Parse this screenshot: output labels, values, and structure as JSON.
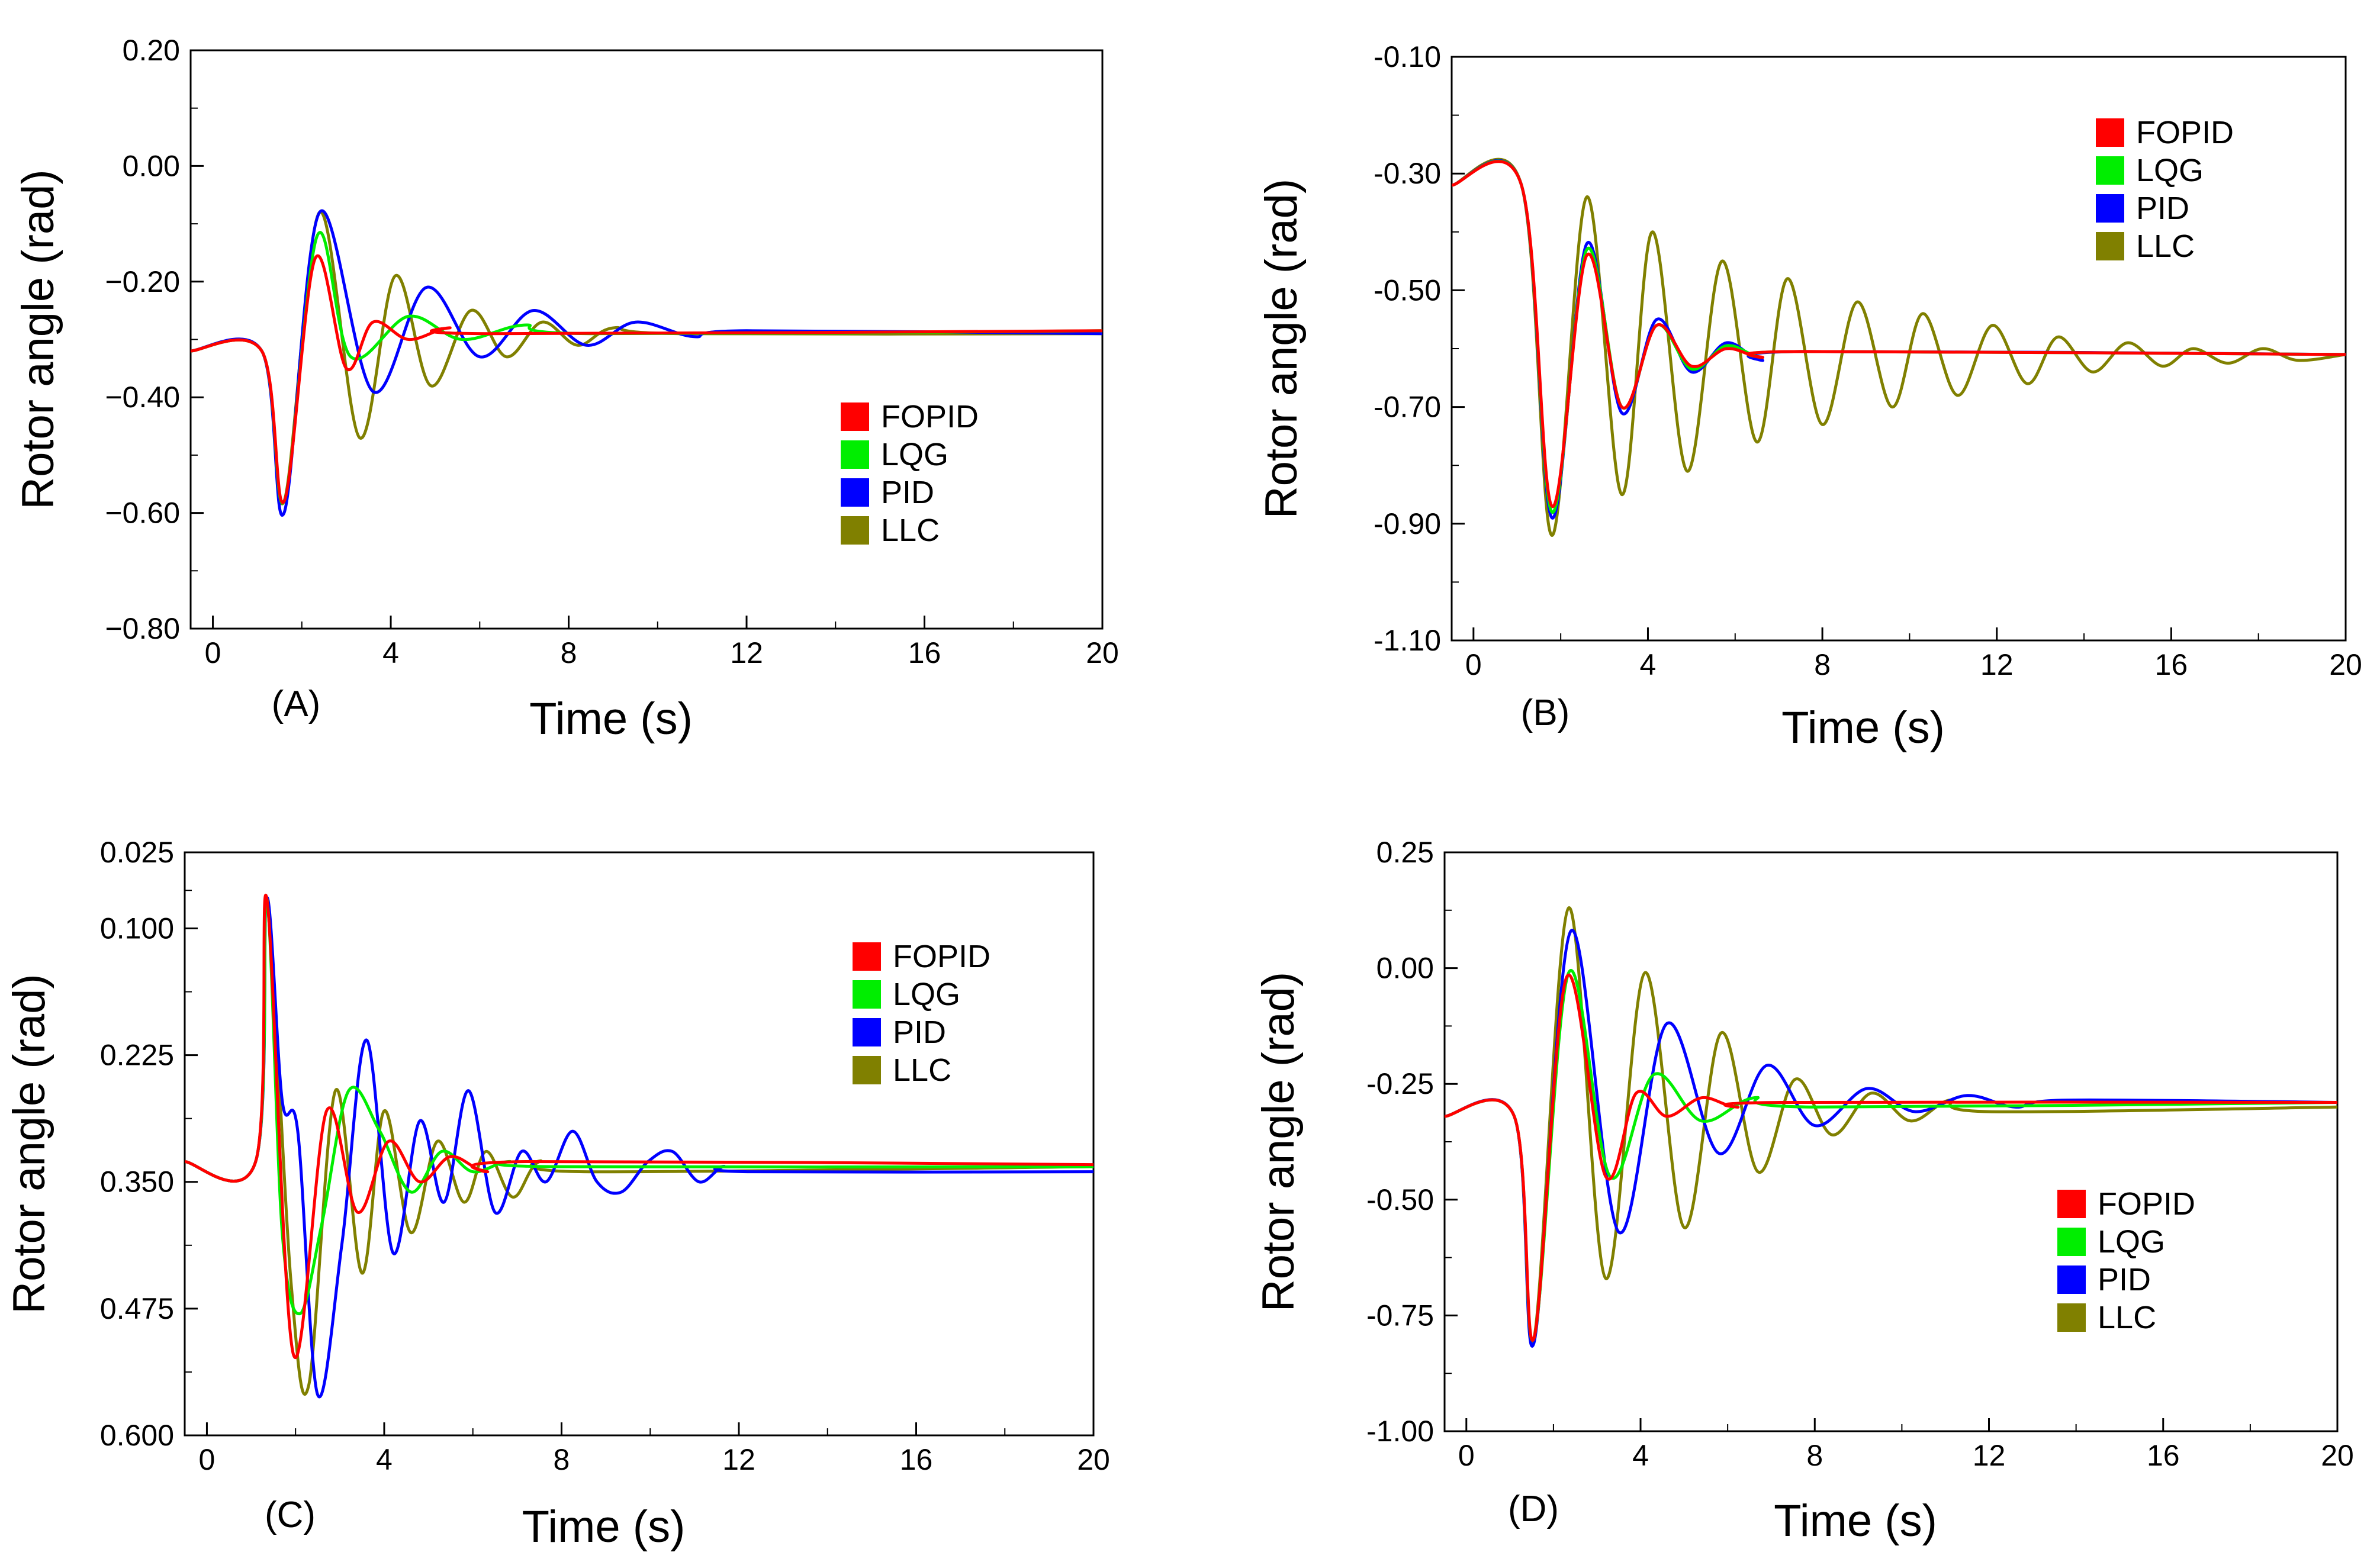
{
  "figure": {
    "panel_tags": [
      "(A)",
      "(B)",
      "(C)",
      "(D)"
    ]
  },
  "colors": {
    "FOPID": "#ff0000",
    "LQG": "#00ee00",
    "PID": "#0000ff",
    "LLC": "#808000"
  },
  "chart_data": [
    {
      "type": "line",
      "panel": "(A)",
      "xlabel": "Time (s)",
      "ylabel": "Rotor angle (rad)",
      "xlim": [
        -0.5,
        20
      ],
      "ylim": [
        -0.8,
        0.2
      ],
      "xticks": [
        0,
        4,
        8,
        12,
        16,
        20
      ],
      "xtick_labels": [
        "0",
        "4",
        "8",
        "12",
        "16",
        "20"
      ],
      "yticks": [
        0.2,
        0.0,
        -0.2,
        -0.4,
        -0.6,
        -0.8
      ],
      "ytick_labels": [
        "0.20",
        "0.00",
        "−0.20",
        "−0.40",
        "−0.60",
        "−0.80"
      ],
      "legend": [
        "FOPID",
        "LQG",
        "PID",
        "LLC"
      ],
      "legend_position": "lower-right",
      "series": [
        {
          "name": "LLC",
          "x": [
            -0.5,
            1.1,
            1.6,
            2.4,
            3.3,
            4.1,
            4.9,
            5.8,
            6.6,
            7.4,
            8.2,
            9.0,
            10.5,
            20
          ],
          "y": [
            -0.32,
            -0.32,
            -0.58,
            -0.08,
            -0.47,
            -0.19,
            -0.38,
            -0.25,
            -0.33,
            -0.27,
            -0.31,
            -0.28,
            -0.29,
            -0.29
          ]
        },
        {
          "name": "PID",
          "x": [
            -0.5,
            1.1,
            1.6,
            2.4,
            3.6,
            4.8,
            6.0,
            7.2,
            8.4,
            9.5,
            10.8,
            12.0,
            20
          ],
          "y": [
            -0.32,
            -0.32,
            -0.6,
            -0.08,
            -0.39,
            -0.21,
            -0.33,
            -0.25,
            -0.31,
            -0.27,
            -0.295,
            -0.285,
            -0.29
          ]
        },
        {
          "name": "LQG",
          "x": [
            -0.5,
            1.1,
            1.6,
            2.35,
            3.1,
            4.4,
            5.6,
            7.0,
            8.5,
            20
          ],
          "y": [
            -0.32,
            -0.32,
            -0.58,
            -0.12,
            -0.33,
            -0.26,
            -0.3,
            -0.275,
            -0.29,
            -0.285
          ]
        },
        {
          "name": "FOPID",
          "x": [
            -0.5,
            1.1,
            1.6,
            2.3,
            3.0,
            3.6,
            4.4,
            5.3,
            6.2,
            20
          ],
          "y": [
            -0.32,
            -0.32,
            -0.58,
            -0.16,
            -0.35,
            -0.27,
            -0.3,
            -0.28,
            -0.29,
            -0.285
          ]
        }
      ]
    },
    {
      "type": "line",
      "panel": "(B)",
      "xlabel": "Time (s)",
      "ylabel": "Rotor angle (rad)",
      "xlim": [
        -0.5,
        20
      ],
      "ylim": [
        -1.1,
        -0.1
      ],
      "xticks": [
        0,
        4,
        8,
        12,
        16,
        20
      ],
      "xtick_labels": [
        "0",
        "4",
        "8",
        "12",
        "16",
        "20"
      ],
      "yticks": [
        -0.1,
        -0.3,
        -0.5,
        -0.7,
        -0.9,
        -1.1
      ],
      "ytick_labels": [
        "-0.10",
        "-0.30",
        "-0.50",
        "-0.70",
        "-0.90",
        "-1.10"
      ],
      "legend": [
        "FOPID",
        "LQG",
        "PID",
        "LLC"
      ],
      "legend_position": "top-right",
      "series": [
        {
          "name": "LLC",
          "x": [
            -0.5,
            1.1,
            1.8,
            2.6,
            3.4,
            4.1,
            4.9,
            5.7,
            6.5,
            7.2,
            8.0,
            8.8,
            9.6,
            10.3,
            11.1,
            11.9,
            12.7,
            13.4,
            14.2,
            15.0,
            15.8,
            16.5,
            17.3,
            18.1,
            18.9,
            20
          ],
          "y": [
            -0.32,
            -0.32,
            -0.92,
            -0.34,
            -0.85,
            -0.4,
            -0.81,
            -0.45,
            -0.76,
            -0.48,
            -0.73,
            -0.52,
            -0.7,
            -0.54,
            -0.68,
            -0.56,
            -0.66,
            -0.58,
            -0.64,
            -0.59,
            -0.63,
            -0.6,
            -0.625,
            -0.6,
            -0.62,
            -0.61
          ]
        },
        {
          "name": "PID",
          "x": [
            -0.5,
            1.1,
            1.8,
            2.6,
            3.4,
            4.2,
            5.0,
            5.8,
            6.6,
            7.5,
            20
          ],
          "y": [
            -0.32,
            -0.32,
            -0.89,
            -0.42,
            -0.71,
            -0.55,
            -0.64,
            -0.59,
            -0.62,
            -0.605,
            -0.61
          ]
        },
        {
          "name": "LQG",
          "x": [
            -0.5,
            1.1,
            1.8,
            2.6,
            3.4,
            4.2,
            5.0,
            5.8,
            6.6,
            7.5,
            20
          ],
          "y": [
            -0.32,
            -0.32,
            -0.88,
            -0.43,
            -0.7,
            -0.56,
            -0.635,
            -0.595,
            -0.615,
            -0.605,
            -0.61
          ]
        },
        {
          "name": "FOPID",
          "x": [
            -0.5,
            1.1,
            1.8,
            2.6,
            3.4,
            4.2,
            5.0,
            5.8,
            6.6,
            7.5,
            20
          ],
          "y": [
            -0.32,
            -0.32,
            -0.87,
            -0.44,
            -0.7,
            -0.56,
            -0.63,
            -0.6,
            -0.615,
            -0.605,
            -0.61
          ]
        }
      ]
    },
    {
      "type": "line",
      "panel": "(C)",
      "xlabel": "Time (s)",
      "ylabel": "Rotor angle (rad)",
      "xlim": [
        -0.5,
        20
      ],
      "ylim": [
        0.025,
        0.6
      ],
      "y_inverted": true,
      "xticks": [
        0,
        4,
        8,
        12,
        16,
        20
      ],
      "xtick_labels": [
        "0",
        "4",
        "8",
        "12",
        "16",
        "20"
      ],
      "yticks": [
        0.025,
        0.1,
        0.225,
        0.35,
        0.475,
        0.6
      ],
      "ytick_labels": [
        "0.025",
        "0.100",
        "0.225",
        "0.350",
        "0.475",
        "0.600"
      ],
      "legend": [
        "FOPID",
        "LQG",
        "PID",
        "LLC"
      ],
      "legend_position": "top-right",
      "series": [
        {
          "name": "LLC",
          "x": [
            -0.5,
            1.1,
            1.35,
            1.9,
            2.3,
            2.9,
            3.5,
            4.0,
            4.6,
            5.2,
            5.8,
            6.3,
            6.9,
            7.5,
            8.5,
            20
          ],
          "y": [
            0.33,
            0.33,
            0.07,
            0.45,
            0.55,
            0.26,
            0.44,
            0.28,
            0.4,
            0.31,
            0.37,
            0.32,
            0.365,
            0.33,
            0.34,
            0.335
          ]
        },
        {
          "name": "PID",
          "x": [
            -0.5,
            1.1,
            1.35,
            1.7,
            2.05,
            2.5,
            3.05,
            3.6,
            4.2,
            4.8,
            5.35,
            5.9,
            6.5,
            7.1,
            7.65,
            8.25,
            8.8,
            9.35,
            9.95,
            10.5,
            11.1,
            11.65,
            12.2,
            20
          ],
          "y": [
            0.33,
            0.33,
            0.07,
            0.27,
            0.3,
            0.56,
            0.41,
            0.21,
            0.42,
            0.29,
            0.37,
            0.26,
            0.38,
            0.32,
            0.35,
            0.3,
            0.35,
            0.36,
            0.33,
            0.32,
            0.35,
            0.335,
            0.34,
            0.34
          ]
        },
        {
          "name": "LQG",
          "x": [
            -0.5,
            1.1,
            1.35,
            1.7,
            2.1,
            2.6,
            3.2,
            3.9,
            4.6,
            5.3,
            6.0,
            6.8,
            7.8,
            20
          ],
          "y": [
            0.33,
            0.33,
            0.07,
            0.4,
            0.48,
            0.39,
            0.26,
            0.3,
            0.36,
            0.32,
            0.34,
            0.33,
            0.335,
            0.335
          ]
        },
        {
          "name": "FOPID",
          "x": [
            -0.5,
            1.1,
            1.35,
            1.95,
            2.7,
            3.4,
            4.1,
            4.8,
            5.5,
            6.3,
            7.2,
            20
          ],
          "y": [
            0.33,
            0.33,
            0.07,
            0.52,
            0.28,
            0.38,
            0.31,
            0.35,
            0.325,
            0.34,
            0.33,
            0.333
          ]
        }
      ]
    },
    {
      "type": "line",
      "panel": "(D)",
      "xlabel": "Time (s)",
      "ylabel": "Rotor angle (rad)",
      "xlim": [
        -0.5,
        20
      ],
      "ylim": [
        -1.0,
        0.25
      ],
      "xticks": [
        0,
        4,
        8,
        12,
        16,
        20
      ],
      "xtick_labels": [
        "0",
        "4",
        "8",
        "12",
        "16",
        "20"
      ],
      "yticks": [
        0.25,
        0.0,
        -0.25,
        -0.5,
        -0.75,
        -1.0
      ],
      "ytick_labels": [
        "0.25",
        "0.00",
        "-0.25",
        "-0.50",
        "-0.75",
        "-1.00"
      ],
      "legend": [
        "FOPID",
        "LQG",
        "PID",
        "LLC"
      ],
      "legend_position": "lower-right",
      "series": [
        {
          "name": "LLC",
          "x": [
            -0.5,
            1.1,
            1.55,
            2.35,
            3.2,
            4.1,
            5.0,
            5.85,
            6.7,
            7.55,
            8.4,
            9.3,
            10.2,
            11.1,
            12.0,
            20
          ],
          "y": [
            -0.32,
            -0.32,
            -0.8,
            0.13,
            -0.67,
            -0.01,
            -0.56,
            -0.14,
            -0.44,
            -0.24,
            -0.36,
            -0.27,
            -0.33,
            -0.285,
            -0.31,
            -0.3
          ]
        },
        {
          "name": "PID",
          "x": [
            -0.5,
            1.1,
            1.55,
            2.4,
            3.5,
            4.6,
            5.8,
            6.9,
            8.0,
            9.2,
            10.3,
            11.5,
            12.6,
            13.8,
            20
          ],
          "y": [
            -0.32,
            -0.32,
            -0.81,
            0.08,
            -0.57,
            -0.12,
            -0.4,
            -0.21,
            -0.34,
            -0.26,
            -0.31,
            -0.275,
            -0.3,
            -0.285,
            -0.29
          ]
        },
        {
          "name": "LQG",
          "x": [
            -0.5,
            1.1,
            1.55,
            2.35,
            3.3,
            4.3,
            5.4,
            6.6,
            8.0,
            20
          ],
          "y": [
            -0.32,
            -0.32,
            -0.8,
            -0.01,
            -0.45,
            -0.23,
            -0.33,
            -0.28,
            -0.3,
            -0.29
          ]
        },
        {
          "name": "FOPID",
          "x": [
            -0.5,
            1.1,
            1.55,
            2.3,
            3.2,
            3.9,
            4.6,
            5.4,
            6.2,
            7.2,
            20
          ],
          "y": [
            -0.32,
            -0.32,
            -0.8,
            -0.02,
            -0.45,
            -0.27,
            -0.32,
            -0.28,
            -0.3,
            -0.29,
            -0.29
          ]
        }
      ]
    }
  ]
}
